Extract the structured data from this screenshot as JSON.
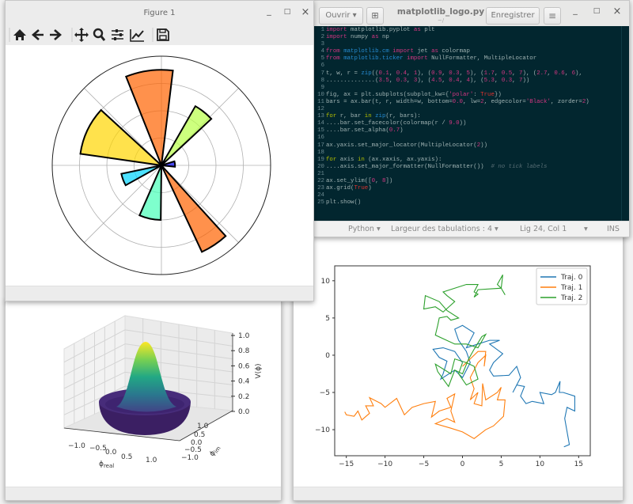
{
  "figure_window": {
    "title": "Figure 1",
    "controls": {
      "minimize": "_",
      "maximize": "□",
      "close": "×"
    },
    "toolbar": [
      "home-icon",
      "back-arrow-icon",
      "forward-arrow-icon",
      "pan-icon",
      "zoom-icon",
      "subplots-config-icon",
      "edit-curves-icon",
      "save-icon"
    ]
  },
  "editor": {
    "open_label": "Ouvrir",
    "new_tab_icon": "new-tab-icon",
    "title": "matplotlib_logo.py",
    "subtitle": "~/",
    "save_label": "Enregistrer",
    "menu_icon": "≡",
    "controls": {
      "minimize": "_",
      "maximize": "□",
      "close": "×"
    },
    "code_lines": [
      [
        [
          "import",
          "k"
        ],
        [
          " matplotlib.pyplot ",
          "p"
        ],
        [
          "as",
          "k"
        ],
        [
          " plt",
          "p"
        ]
      ],
      [
        [
          "import",
          "k"
        ],
        [
          " numpy ",
          "p"
        ],
        [
          "as",
          "k"
        ],
        [
          " np",
          "p"
        ]
      ],
      [],
      [
        [
          "from",
          "k"
        ],
        [
          " ",
          "p"
        ],
        [
          "matplotlib.cm",
          "m"
        ],
        [
          " ",
          "p"
        ],
        [
          "import",
          "k"
        ],
        [
          " jet ",
          "p"
        ],
        [
          "as",
          "k"
        ],
        [
          " colormap",
          "p"
        ]
      ],
      [
        [
          "from",
          "k"
        ],
        [
          " ",
          "p"
        ],
        [
          "matplotlib.ticker",
          "m"
        ],
        [
          " ",
          "p"
        ],
        [
          "import",
          "k"
        ],
        [
          " NullFormatter, MultipleLocator",
          "p"
        ]
      ],
      [],
      [
        [
          "t, w, r = ",
          "p"
        ],
        [
          "zip",
          "m"
        ],
        [
          "((",
          "p"
        ],
        [
          "0.1",
          "n"
        ],
        [
          ", ",
          "p"
        ],
        [
          "0.4",
          "n"
        ],
        [
          ", ",
          "p"
        ],
        [
          "1",
          "n"
        ],
        [
          "), (",
          "p"
        ],
        [
          "0.9",
          "n"
        ],
        [
          ", ",
          "p"
        ],
        [
          "0.3",
          "n"
        ],
        [
          ", ",
          "p"
        ],
        [
          "5",
          "n"
        ],
        [
          "), (",
          "p"
        ],
        [
          "1.7",
          "n"
        ],
        [
          ", ",
          "p"
        ],
        [
          "0.5",
          "n"
        ],
        [
          ", ",
          "p"
        ],
        [
          "7",
          "n"
        ],
        [
          "), (",
          "p"
        ],
        [
          "2.7",
          "n"
        ],
        [
          ", ",
          "p"
        ],
        [
          "0.6",
          "n"
        ],
        [
          ", ",
          "p"
        ],
        [
          "6",
          "n"
        ],
        [
          "),",
          "p"
        ]
      ],
      [
        [
          "..............(",
          "p"
        ],
        [
          "3.5",
          "n"
        ],
        [
          ", ",
          "p"
        ],
        [
          "0.3",
          "n"
        ],
        [
          ", ",
          "p"
        ],
        [
          "3",
          "n"
        ],
        [
          "), (",
          "p"
        ],
        [
          "4.5",
          "n"
        ],
        [
          ", ",
          "p"
        ],
        [
          "0.4",
          "n"
        ],
        [
          ", ",
          "p"
        ],
        [
          "4",
          "n"
        ],
        [
          "), (",
          "p"
        ],
        [
          "5.3",
          "n"
        ],
        [
          ", ",
          "p"
        ],
        [
          "0.3",
          "n"
        ],
        [
          ", ",
          "p"
        ],
        [
          "7",
          "n"
        ],
        [
          "))",
          "p"
        ]
      ],
      [],
      [
        [
          "fig, ax = plt.subplots(subplot_kw={",
          "p"
        ],
        [
          "'polar'",
          "s"
        ],
        [
          ": ",
          "p"
        ],
        [
          "True",
          "t"
        ],
        [
          "})",
          "p"
        ]
      ],
      [
        [
          "bars = ax.bar(t, r, width=w, bottom=",
          "p"
        ],
        [
          "0.0",
          "n"
        ],
        [
          ", lw=",
          "p"
        ],
        [
          "2",
          "n"
        ],
        [
          ", edgecolor=",
          "p"
        ],
        [
          "'Black'",
          "s"
        ],
        [
          ", zorder=",
          "p"
        ],
        [
          "2",
          "n"
        ],
        [
          ")",
          "p"
        ]
      ],
      [],
      [
        [
          "for",
          "f"
        ],
        [
          " r, bar ",
          "p"
        ],
        [
          "in",
          "f"
        ],
        [
          " ",
          "p"
        ],
        [
          "zip",
          "m"
        ],
        [
          "(r, bars):",
          "p"
        ]
      ],
      [
        [
          "....bar.set_facecolor(colormap(r / ",
          "p"
        ],
        [
          "9.0",
          "n"
        ],
        [
          "))",
          "p"
        ]
      ],
      [
        [
          "....bar.set_alpha(",
          "p"
        ],
        [
          "0.7",
          "n"
        ],
        [
          ")",
          "p"
        ]
      ],
      [],
      [
        [
          "ax.yaxis.set_major_locator(MultipleLocator(",
          "p"
        ],
        [
          "2",
          "n"
        ],
        [
          "))",
          "p"
        ]
      ],
      [],
      [
        [
          "for",
          "f"
        ],
        [
          " axis ",
          "p"
        ],
        [
          "in",
          "f"
        ],
        [
          " (ax.xaxis, ax.yaxis):",
          "p"
        ]
      ],
      [
        [
          "....axis.set_major_formatter(NullFormatter())  ",
          "p"
        ],
        [
          "# no tick labels",
          "c"
        ]
      ],
      [],
      [
        [
          "ax.set_ylim([",
          "p"
        ],
        [
          "0",
          "n"
        ],
        [
          ", ",
          "p"
        ],
        [
          "8",
          "n"
        ],
        [
          "])",
          "p"
        ]
      ],
      [
        [
          "ax.grid(",
          "p"
        ],
        [
          "True",
          "t"
        ],
        [
          ")",
          "p"
        ]
      ],
      [],
      [
        [
          "plt.show()",
          "p"
        ]
      ]
    ],
    "status": {
      "language": "Python ▾",
      "tab_width": "Largeur des tabulations : 4 ▾",
      "position": "Lig 24, Col 1",
      "dropdown": "▾",
      "mode": "INS"
    }
  },
  "chart_data": [
    {
      "type": "bar",
      "projection": "polar",
      "theta": [
        0.1,
        0.9,
        1.7,
        2.7,
        3.5,
        4.5,
        5.3
      ],
      "width": [
        0.4,
        0.3,
        0.5,
        0.6,
        0.3,
        0.4,
        0.3
      ],
      "radius": [
        1,
        5,
        7,
        6,
        3,
        4,
        7
      ],
      "colormap": "jet",
      "color_norm": 9.0,
      "alpha": 0.7,
      "edgecolor": "#000000",
      "ylim": [
        0,
        8
      ],
      "r_grid_step": 2,
      "grid": true,
      "tick_labels": false
    },
    {
      "type": "surface",
      "colormap": "viridis",
      "xlabel": {
        "symbol": "ϕ",
        "sub": "real"
      },
      "ylabel": {
        "symbol": "ϕ",
        "sub": "im"
      },
      "zlabel": "V(ϕ)",
      "xticks": [
        "−1.0",
        "−0.5",
        "0.0",
        "0.5",
        "1.0"
      ],
      "yticks": [
        "1.0",
        "0.5",
        "0.0",
        "−0.5",
        "−1.0"
      ],
      "zticks": [
        "1.0",
        "0.8",
        "0.6",
        "0.4",
        "0.2",
        "0.0"
      ],
      "zlim": [
        0,
        1
      ]
    },
    {
      "type": "line",
      "xlim": [
        -16.5,
        16.5
      ],
      "ylim": [
        -13.5,
        12
      ],
      "xticks": [
        -15,
        -10,
        -5,
        0,
        5,
        10,
        15
      ],
      "yticks": [
        -10,
        -5,
        0,
        5,
        10
      ],
      "legend": "top-right",
      "series": [
        {
          "name": "Traj. 0",
          "color": "#1f77b4",
          "points": [
            [
              0,
              -1
            ],
            [
              -1,
              0.5
            ],
            [
              -2.5,
              1
            ],
            [
              -3.8,
              0.8
            ],
            [
              -3,
              -0.3
            ],
            [
              -2,
              -0.8
            ],
            [
              -2.5,
              -2.5
            ],
            [
              -2.8,
              -3.2
            ],
            [
              -1,
              -2
            ],
            [
              0,
              -3
            ],
            [
              1,
              -1
            ],
            [
              0.5,
              0.5
            ],
            [
              -0.5,
              2
            ],
            [
              -1,
              3.5
            ],
            [
              0,
              4
            ],
            [
              1.5,
              3
            ],
            [
              0.5,
              1
            ],
            [
              2,
              1.5
            ],
            [
              3.5,
              2
            ],
            [
              4.8,
              2
            ],
            [
              3.5,
              1.5
            ],
            [
              5.2,
              0.2
            ],
            [
              4,
              -1
            ],
            [
              3.5,
              -2
            ],
            [
              4,
              -2.8
            ],
            [
              6,
              -2.7
            ],
            [
              7,
              -1.5
            ],
            [
              7.5,
              -3
            ],
            [
              6.5,
              -5
            ],
            [
              7,
              -4
            ],
            [
              8,
              -4.2
            ],
            [
              7.5,
              -5.5
            ],
            [
              8.2,
              -6.5
            ],
            [
              9,
              -6.2
            ],
            [
              10.5,
              -6.5
            ],
            [
              10,
              -5
            ],
            [
              11.5,
              -5.3
            ],
            [
              12,
              -5
            ],
            [
              12.6,
              -3.5
            ],
            [
              12.5,
              -5
            ],
            [
              13,
              -5
            ],
            [
              14.5,
              -5.5
            ],
            [
              14.5,
              -7.5
            ],
            [
              13.5,
              -7
            ],
            [
              13.2,
              -8.5
            ],
            [
              13.8,
              -12
            ],
            [
              13.1,
              -12.3
            ]
          ]
        },
        {
          "name": "Traj. 1",
          "color": "#ff7f0e",
          "points": [
            [
              0,
              -1.5
            ],
            [
              1,
              -0.5
            ],
            [
              2,
              0.5
            ],
            [
              3,
              0.5
            ],
            [
              2.8,
              -1.5
            ],
            [
              3,
              0
            ],
            [
              2,
              -1
            ],
            [
              1.5,
              -2
            ],
            [
              1,
              -3
            ],
            [
              1.5,
              -4.5
            ],
            [
              1,
              -6
            ],
            [
              2,
              -5
            ],
            [
              1.5,
              -6.5
            ],
            [
              2.5,
              -6.8
            ],
            [
              2.6,
              -3.8
            ],
            [
              3,
              -6
            ],
            [
              4.5,
              -5
            ],
            [
              5,
              -4.3
            ],
            [
              4.5,
              -6
            ],
            [
              5.5,
              -6
            ],
            [
              5.3,
              -8.2
            ],
            [
              4,
              -9.5
            ],
            [
              3,
              -10
            ],
            [
              1.5,
              -11.2
            ],
            [
              0,
              -10.3
            ],
            [
              -1.5,
              -9.8
            ],
            [
              -3.5,
              -9.2
            ],
            [
              -2,
              -8.5
            ],
            [
              -1,
              -9
            ],
            [
              -1.5,
              -7.5
            ],
            [
              -1,
              -5.2
            ],
            [
              -2,
              -5.8
            ],
            [
              -1.5,
              -7
            ],
            [
              -3,
              -7.5
            ],
            [
              -4,
              -8.3
            ],
            [
              -3.5,
              -6.2
            ],
            [
              -5,
              -6.5
            ],
            [
              -6.5,
              -7
            ],
            [
              -7.5,
              -8
            ],
            [
              -8.5,
              -5.8
            ],
            [
              -10,
              -7
            ],
            [
              -10.5,
              -6.5
            ],
            [
              -12,
              -5.7
            ],
            [
              -11.5,
              -6.8
            ],
            [
              -12.5,
              -6.8
            ],
            [
              -12,
              -7.8
            ],
            [
              -13,
              -8.7
            ],
            [
              -13.5,
              -7.5
            ],
            [
              -14,
              -8.2
            ],
            [
              -15,
              -8
            ],
            [
              -15.2,
              -7.6
            ]
          ]
        },
        {
          "name": "Traj. 2",
          "color": "#2ca02c",
          "points": [
            [
              0,
              -1
            ],
            [
              -0.5,
              -2.5
            ],
            [
              0.5,
              -4
            ],
            [
              2,
              -3.2
            ],
            [
              1.5,
              -1.5
            ],
            [
              0.5,
              -1
            ],
            [
              -1,
              -0.5
            ],
            [
              -1.5,
              -2.5
            ],
            [
              -3.5,
              -1.2
            ],
            [
              -3.2,
              -2.2
            ],
            [
              -1.8,
              -4.2
            ],
            [
              -1,
              -2
            ],
            [
              0,
              -2.5
            ],
            [
              0.8,
              -0.5
            ],
            [
              1.5,
              0.8
            ],
            [
              2.5,
              2.5
            ],
            [
              3,
              2.8
            ],
            [
              2,
              1
            ],
            [
              0.5,
              1.5
            ],
            [
              -1,
              1.5
            ],
            [
              -3.5,
              2.7
            ],
            [
              -3.2,
              4
            ],
            [
              -3,
              5
            ],
            [
              -2,
              5.2
            ],
            [
              -1.5,
              4.7
            ],
            [
              -0.5,
              5
            ],
            [
              -2,
              6
            ],
            [
              -3,
              7.2
            ],
            [
              -4.8,
              8
            ],
            [
              -5,
              6.2
            ],
            [
              -3.5,
              6.5
            ],
            [
              -2.5,
              5.8
            ],
            [
              -1,
              7.2
            ],
            [
              -2,
              8
            ],
            [
              -2.5,
              8.5
            ],
            [
              -1,
              9
            ],
            [
              0.5,
              9.5
            ],
            [
              2,
              9.5
            ],
            [
              1.5,
              8.5
            ],
            [
              2,
              8.2
            ],
            [
              1.5,
              7.8
            ],
            [
              2,
              8.8
            ],
            [
              5,
              9
            ],
            [
              4.5,
              9.5
            ],
            [
              5.2,
              10.8
            ],
            [
              5,
              9
            ],
            [
              5.5,
              8.1
            ]
          ]
        }
      ]
    }
  ]
}
